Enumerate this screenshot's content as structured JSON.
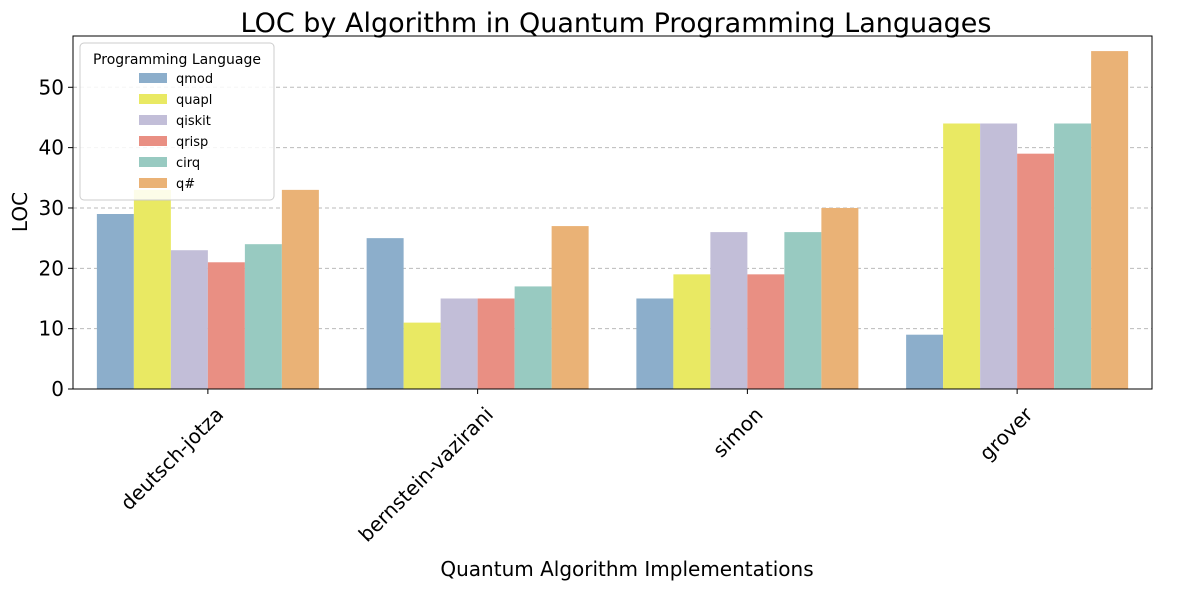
{
  "chart_data": {
    "type": "bar",
    "title": "LOC by Algorithm in Quantum Programming Languages",
    "xlabel": "Quantum Algorithm Implementations",
    "ylabel": "LOC",
    "categories": [
      "deutsch-jotza",
      "bernstein-vazirani",
      "simon",
      "grover"
    ],
    "ylim": [
      0,
      58.5
    ],
    "yticks": [
      0,
      10,
      20,
      30,
      40,
      50
    ],
    "grid": "y-dashed",
    "legend": {
      "title": "Programming Language",
      "placement": "top-left"
    },
    "series": [
      {
        "name": "qmod",
        "color": "#8caecb",
        "values": [
          29,
          25,
          15,
          9
        ]
      },
      {
        "name": "quapl",
        "color": "#e9e963",
        "values": [
          33,
          11,
          19,
          44
        ]
      },
      {
        "name": "qiskit",
        "color": "#c2bed8",
        "values": [
          23,
          15,
          26,
          44
        ]
      },
      {
        "name": "qrisp",
        "color": "#e98f83",
        "values": [
          21,
          15,
          19,
          39
        ]
      },
      {
        "name": "cirq",
        "color": "#98cac1",
        "values": [
          24,
          17,
          26,
          44
        ]
      },
      {
        "name": "q#",
        "color": "#eab276",
        "values": [
          33,
          27,
          30,
          56
        ]
      }
    ]
  }
}
